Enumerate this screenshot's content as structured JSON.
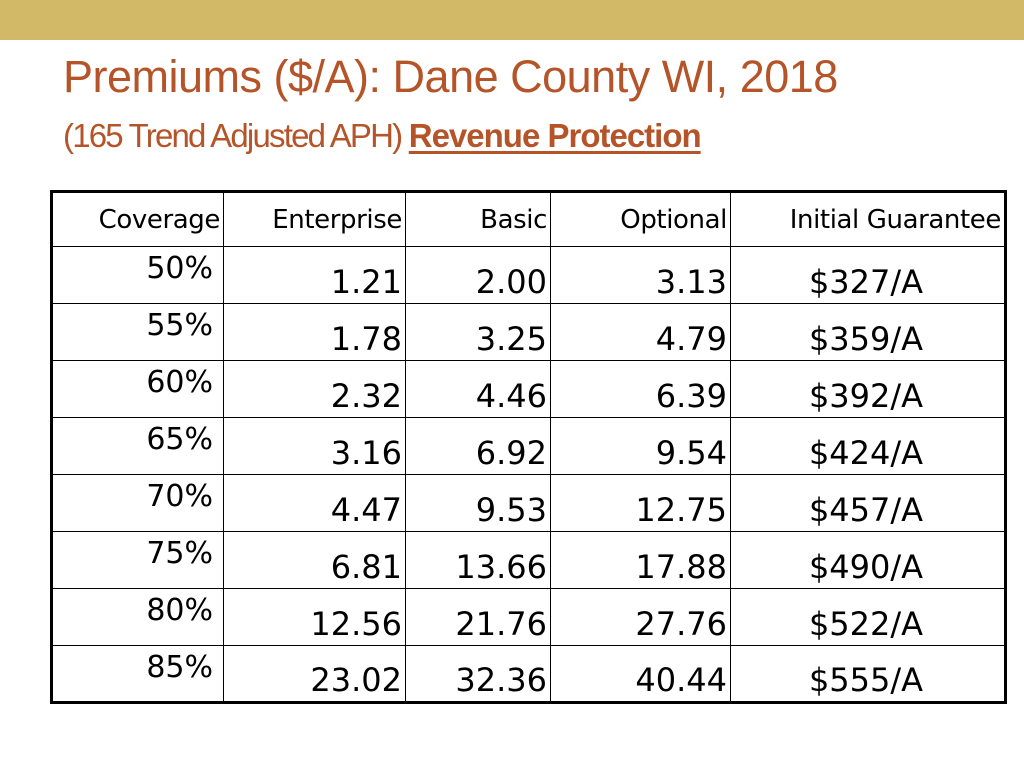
{
  "header": {
    "title": "Premiums ($/A): Dane County WI, 2018",
    "subtitle_prefix": "(165 Trend Adjusted APH) ",
    "subtitle_emphasis": "Revenue Protection"
  },
  "colors": {
    "top_bar": "#d1b968",
    "title_text": "#b55428",
    "table_border": "#000000"
  },
  "table": {
    "columns": [
      "Coverage",
      "Enterprise",
      "Basic",
      "Optional",
      "Initial Guarantee"
    ],
    "rows": [
      {
        "coverage": "50%",
        "enterprise": "1.21",
        "basic": "2.00",
        "optional": "3.13",
        "guarantee": "$327/A"
      },
      {
        "coverage": "55%",
        "enterprise": "1.78",
        "basic": "3.25",
        "optional": "4.79",
        "guarantee": "$359/A"
      },
      {
        "coverage": "60%",
        "enterprise": "2.32",
        "basic": "4.46",
        "optional": "6.39",
        "guarantee": "$392/A"
      },
      {
        "coverage": "65%",
        "enterprise": "3.16",
        "basic": "6.92",
        "optional": "9.54",
        "guarantee": "$424/A"
      },
      {
        "coverage": "70%",
        "enterprise": "4.47",
        "basic": "9.53",
        "optional": "12.75",
        "guarantee": "$457/A"
      },
      {
        "coverage": "75%",
        "enterprise": "6.81",
        "basic": "13.66",
        "optional": "17.88",
        "guarantee": "$490/A"
      },
      {
        "coverage": "80%",
        "enterprise": "12.56",
        "basic": "21.76",
        "optional": "27.76",
        "guarantee": "$522/A"
      },
      {
        "coverage": "85%",
        "enterprise": "23.02",
        "basic": "32.36",
        "optional": "40.44",
        "guarantee": "$555/A"
      }
    ]
  }
}
